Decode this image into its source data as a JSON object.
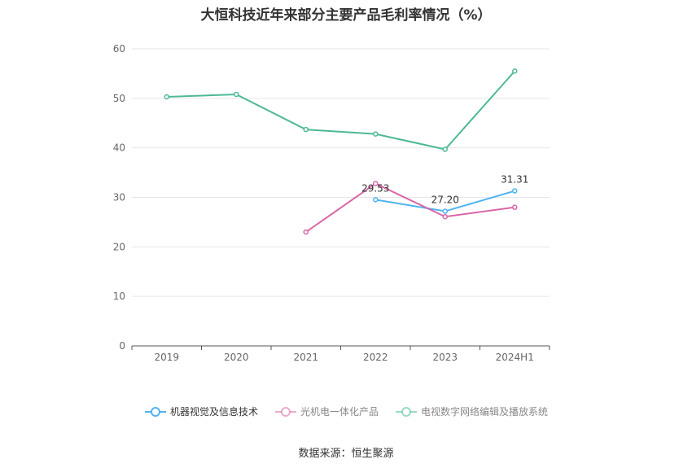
{
  "title": "大恒科技近年来部分主要产品毛利率情况（%）",
  "source": "数据来源：恒生聚源",
  "chart_data": {
    "type": "line",
    "categories": [
      "2019",
      "2020",
      "2021",
      "2022",
      "2023",
      "2024H1"
    ],
    "ylim": [
      0,
      60
    ],
    "yticks": [
      0,
      10,
      20,
      30,
      40,
      50,
      60
    ],
    "grid": true,
    "legend_position": "bottom",
    "series": [
      {
        "name": "机器视觉及信息技术",
        "color": "#4fb3f0",
        "values": [
          null,
          null,
          null,
          29.53,
          27.2,
          31.31
        ],
        "labels": [
          null,
          null,
          null,
          "29.53",
          "27.20",
          "31.31"
        ]
      },
      {
        "name": "光机电一体化产品",
        "color": "#d966a6",
        "values": [
          null,
          null,
          23.0,
          32.8,
          26.1,
          28.0
        ]
      },
      {
        "name": "电视数字网络编辑及播放系统",
        "color": "#4db896",
        "values": [
          50.3,
          50.8,
          43.7,
          42.8,
          39.7,
          55.5
        ]
      }
    ]
  }
}
